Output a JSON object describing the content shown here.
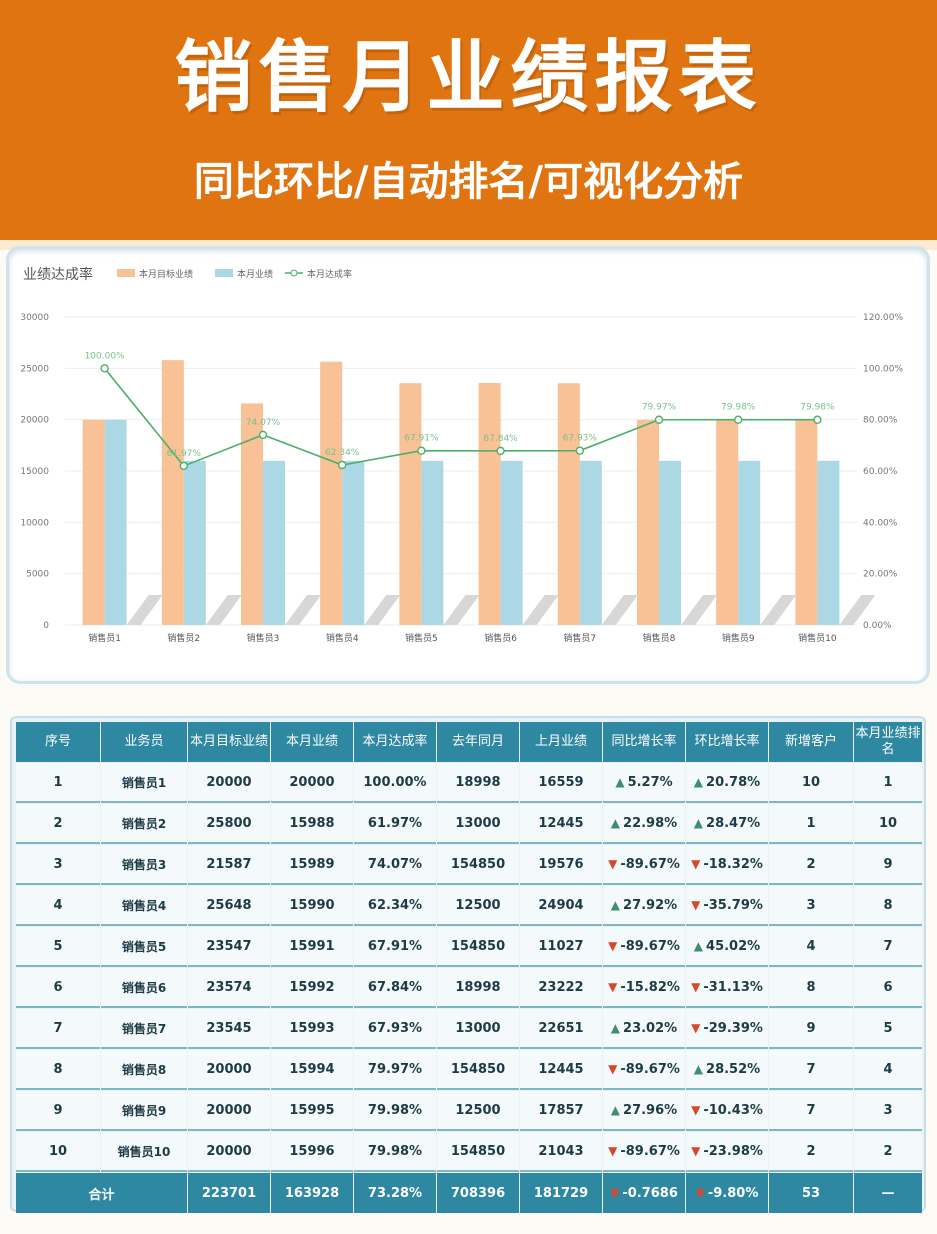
{
  "banner": {
    "title": "销售月业绩报表",
    "subtitle": "同比环比/自动排名/可视化分析"
  },
  "colors": {
    "banner": "#e07410",
    "target_bar": "#f9c196",
    "actual_bar": "#acd8e6",
    "rate_line": "#4caf68",
    "header": "#2f88a1",
    "up_arrow": "#3f8f6a",
    "down_arrow": "#d9472b"
  },
  "chart_data": {
    "type": "bar",
    "title": "业绩达成率",
    "categories": [
      "销售员1",
      "销售员2",
      "销售员3",
      "销售员4",
      "销售员5",
      "销售员6",
      "销售员7",
      "销售员8",
      "销售员9",
      "销售员10"
    ],
    "series": [
      {
        "name": "本月目标业绩",
        "type": "bar",
        "axis": "left",
        "values": [
          20000,
          25800,
          21587,
          25648,
          23547,
          23574,
          23545,
          20000,
          20000,
          20000
        ]
      },
      {
        "name": "本月业绩",
        "type": "bar",
        "axis": "left",
        "values": [
          20000,
          15988,
          15989,
          15990,
          15991,
          15992,
          15993,
          15994,
          15995,
          15996
        ]
      },
      {
        "name": "本月达成率",
        "type": "line",
        "axis": "right",
        "values": [
          100.0,
          61.97,
          74.07,
          62.34,
          67.91,
          67.84,
          67.93,
          79.97,
          79.98,
          79.98
        ]
      }
    ],
    "data_labels": [
      "100.00%",
      "61.97%",
      "74.07%",
      "62.34%",
      "67.91%",
      "67.84%",
      "67.93%",
      "79.97%",
      "79.98%",
      "79.98%"
    ],
    "ylim_left": [
      0,
      30000
    ],
    "yticks_left": [
      "0",
      "5000",
      "10000",
      "15000",
      "20000",
      "25000",
      "30000"
    ],
    "ylim_right": [
      0,
      120
    ],
    "yticks_right": [
      "0.00%",
      "20.00%",
      "40.00%",
      "60.00%",
      "80.00%",
      "100.00%",
      "120.00%"
    ],
    "legend_position": "top-left",
    "grid": true
  },
  "table": {
    "headers": [
      "序号",
      "业务员",
      "本月目标业绩",
      "本月业绩",
      "本月达成率",
      "去年同月",
      "上月业绩",
      "同比增长率",
      "环比增长率",
      "新增客户",
      "本月业绩排名"
    ],
    "rows": [
      {
        "no": "1",
        "name": "销售员1",
        "target": "20000",
        "actual": "20000",
        "rate": "100.00%",
        "last_year": "18998",
        "last_month": "16559",
        "yoy": "5.27%",
        "yoy_dir": "up",
        "mom": "20.78%",
        "mom_dir": "up",
        "new_clients": "10",
        "rank": "1"
      },
      {
        "no": "2",
        "name": "销售员2",
        "target": "25800",
        "actual": "15988",
        "rate": "61.97%",
        "last_year": "13000",
        "last_month": "12445",
        "yoy": "22.98%",
        "yoy_dir": "up",
        "mom": "28.47%",
        "mom_dir": "up",
        "new_clients": "1",
        "rank": "10"
      },
      {
        "no": "3",
        "name": "销售员3",
        "target": "21587",
        "actual": "15989",
        "rate": "74.07%",
        "last_year": "154850",
        "last_month": "19576",
        "yoy": "-89.67%",
        "yoy_dir": "down",
        "mom": "-18.32%",
        "mom_dir": "down",
        "new_clients": "2",
        "rank": "9"
      },
      {
        "no": "4",
        "name": "销售员4",
        "target": "25648",
        "actual": "15990",
        "rate": "62.34%",
        "last_year": "12500",
        "last_month": "24904",
        "yoy": "27.92%",
        "yoy_dir": "up",
        "mom": "-35.79%",
        "mom_dir": "down",
        "new_clients": "3",
        "rank": "8"
      },
      {
        "no": "5",
        "name": "销售员5",
        "target": "23547",
        "actual": "15991",
        "rate": "67.91%",
        "last_year": "154850",
        "last_month": "11027",
        "yoy": "-89.67%",
        "yoy_dir": "down",
        "mom": "45.02%",
        "mom_dir": "up",
        "new_clients": "4",
        "rank": "7"
      },
      {
        "no": "6",
        "name": "销售员6",
        "target": "23574",
        "actual": "15992",
        "rate": "67.84%",
        "last_year": "18998",
        "last_month": "23222",
        "yoy": "-15.82%",
        "yoy_dir": "down",
        "mom": "-31.13%",
        "mom_dir": "down",
        "new_clients": "8",
        "rank": "6"
      },
      {
        "no": "7",
        "name": "销售员7",
        "target": "23545",
        "actual": "15993",
        "rate": "67.93%",
        "last_year": "13000",
        "last_month": "22651",
        "yoy": "23.02%",
        "yoy_dir": "up",
        "mom": "-29.39%",
        "mom_dir": "down",
        "new_clients": "9",
        "rank": "5"
      },
      {
        "no": "8",
        "name": "销售员8",
        "target": "20000",
        "actual": "15994",
        "rate": "79.97%",
        "last_year": "154850",
        "last_month": "12445",
        "yoy": "-89.67%",
        "yoy_dir": "down",
        "mom": "28.52%",
        "mom_dir": "up",
        "new_clients": "7",
        "rank": "4"
      },
      {
        "no": "9",
        "name": "销售员9",
        "target": "20000",
        "actual": "15995",
        "rate": "79.98%",
        "last_year": "12500",
        "last_month": "17857",
        "yoy": "27.96%",
        "yoy_dir": "up",
        "mom": "-10.43%",
        "mom_dir": "down",
        "new_clients": "7",
        "rank": "3"
      },
      {
        "no": "10",
        "name": "销售员10",
        "target": "20000",
        "actual": "15996",
        "rate": "79.98%",
        "last_year": "154850",
        "last_month": "21043",
        "yoy": "-89.67%",
        "yoy_dir": "down",
        "mom": "-23.98%",
        "mom_dir": "down",
        "new_clients": "2",
        "rank": "2"
      }
    ],
    "total": {
      "label": "合计",
      "target": "223701",
      "actual": "163928",
      "rate": "73.28%",
      "last_year": "708396",
      "last_month": "181729",
      "yoy": "-0.7686",
      "yoy_dir": "down",
      "mom": "-9.80%",
      "mom_dir": "down",
      "new_clients": "53",
      "rank": "—"
    }
  }
}
